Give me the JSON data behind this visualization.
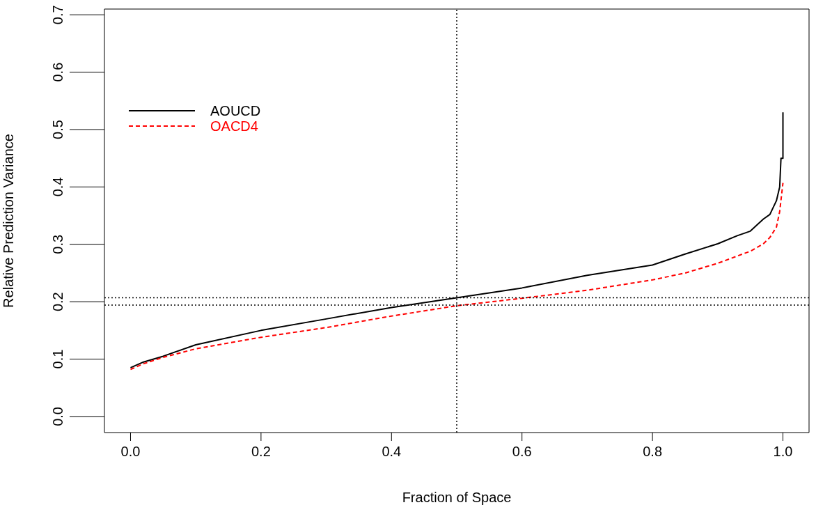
{
  "chart_data": {
    "type": "line",
    "xlabel": "Fraction of Space",
    "ylabel": "Relative Prediction Variance",
    "xlim": [
      -0.04,
      1.04
    ],
    "xticks": [
      {
        "value": 0,
        "label": "0.0"
      },
      0.2,
      0.4,
      0.6,
      0.8,
      {
        "value": 1,
        "label": "1.0"
      }
    ],
    "ylim": [
      -0.028,
      0.71
    ],
    "yticks": [
      {
        "value": 0,
        "label": "0.0"
      },
      0.1,
      0.2,
      0.3,
      0.4,
      0.5,
      0.6,
      0.7
    ],
    "legend": "top left",
    "marker": "none",
    "series": [
      {
        "name": "AOUCD",
        "color": "#000000",
        "line_style": "solid",
        "x": [
          0,
          0.02,
          0.05,
          0.1,
          0.2,
          0.3,
          0.4,
          0.5,
          0.6,
          0.7,
          0.8,
          0.85,
          0.9,
          0.93,
          0.95,
          0.97,
          0.98,
          0.99,
          0.995,
          0.997,
          1,
          1
        ],
        "values": [
          0.085,
          0.095,
          0.105,
          0.125,
          0.15,
          0.17,
          0.19,
          0.207,
          0.224,
          0.246,
          0.264,
          0.283,
          0.301,
          0.315,
          0.323,
          0.344,
          0.352,
          0.376,
          0.4,
          0.45,
          0.45,
          0.53
        ]
      },
      {
        "name": "OACD4",
        "color": "#ff0000",
        "line_style": "dashed",
        "x": [
          0,
          0.02,
          0.05,
          0.1,
          0.2,
          0.3,
          0.4,
          0.5,
          0.6,
          0.7,
          0.8,
          0.85,
          0.9,
          0.95,
          0.97,
          0.98,
          0.99,
          0.995,
          1
        ],
        "values": [
          0.082,
          0.092,
          0.103,
          0.118,
          0.138,
          0.155,
          0.175,
          0.193,
          0.206,
          0.22,
          0.238,
          0.25,
          0.267,
          0.288,
          0.301,
          0.312,
          0.33,
          0.357,
          0.407
        ]
      }
    ],
    "ref_lines": [
      {
        "axis": "x",
        "value": 0.5,
        "line_style": "dotted",
        "color": "#000000"
      },
      {
        "axis": "y",
        "value": 0.207,
        "line_style": "dotted",
        "color": "#000000"
      },
      {
        "axis": "y",
        "value": 0.194,
        "line_style": "dotted",
        "color": "#000000"
      }
    ]
  }
}
